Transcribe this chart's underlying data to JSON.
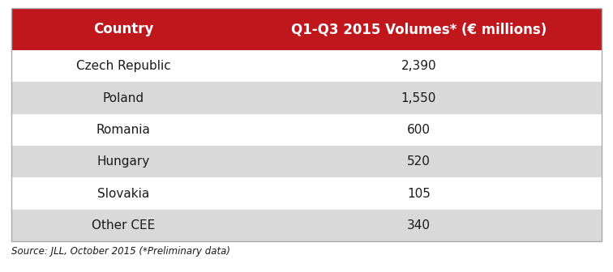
{
  "header_col1": "Country",
  "header_col2": "Q1-Q3 2015 Volumes* (€ millions)",
  "rows": [
    [
      "Czech Republic",
      "2,390"
    ],
    [
      "Poland",
      "1,550"
    ],
    [
      "Romania",
      "600"
    ],
    [
      "Hungary",
      "520"
    ],
    [
      "Slovakia",
      "105"
    ],
    [
      "Other CEE",
      "340"
    ]
  ],
  "header_bg": "#C0171D",
  "header_text_color": "#FFFFFF",
  "row_bg_white": "#FFFFFF",
  "row_bg_gray": "#D9D9D9",
  "row_text_color": "#1A1A1A",
  "source_text": "Source: JLL, October 2015 (*Preliminary data)",
  "source_fontsize": 8.5,
  "header_fontsize": 12,
  "row_fontsize": 11,
  "fig_bg": "#FFFFFF",
  "border_color": "#AAAAAA",
  "col_split": 0.38
}
